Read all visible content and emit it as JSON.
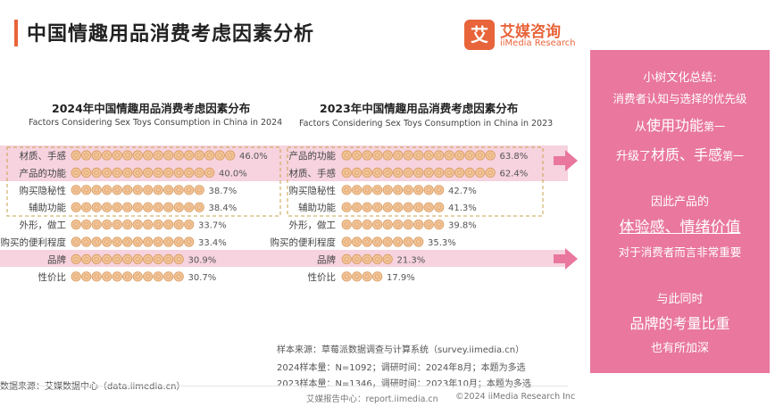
{
  "header": {
    "title": "中国情趣用品消费考虑因素分析",
    "logo_cn": "艾媒咨询",
    "logo_en": "iiMedia Research",
    "logo_mark": "艾"
  },
  "chart_data": [
    {
      "type": "bar",
      "title": "2024年中国情趣用品消费考虑因素分布",
      "subtitle": "Factors Considering Sex Toys Consumption in China in 2024",
      "categories": [
        "材质、手感",
        "产品的功能",
        "购买隐秘性",
        "辅助功能",
        "外形，做工",
        "购买的便利程度",
        "品牌",
        "性价比"
      ],
      "values": [
        46.0,
        40.0,
        38.7,
        38.4,
        33.7,
        33.4,
        30.9,
        30.7
      ],
      "value_labels": [
        "46.0%",
        "40.0%",
        "38.7%",
        "38.4%",
        "33.7%",
        "33.4%",
        "30.9%",
        "30.7%"
      ],
      "unit": "%"
    },
    {
      "type": "bar",
      "title": "2023年中国情趣用品消费考虑因素分布",
      "subtitle": "Factors Considering Sex Toys Consumption in China in 2023",
      "categories": [
        "产品的功能",
        "材质、手感",
        "购买隐秘性",
        "辅助功能",
        "外形，做工",
        "购买的便利程度",
        "品牌",
        "性价比"
      ],
      "values": [
        63.8,
        62.4,
        42.7,
        41.3,
        39.8,
        35.3,
        21.3,
        17.9
      ],
      "value_labels": [
        "63.8%",
        "62.4%",
        "42.7%",
        "41.3%",
        "39.8%",
        "35.3%",
        "21.3%",
        "17.9%"
      ],
      "unit": "%"
    }
  ],
  "colors": {
    "accent": "#e8643a",
    "panel": "#e9779e",
    "highlight": "#f6d3de",
    "bubble_fill": "#f2c59a",
    "bubble_stroke": "#d99a5e",
    "dash": "#c9a24a"
  },
  "sources": {
    "sample_source": "样本来源：草莓派数据调查与计算系统（survey.iimedia.cn）",
    "sample_2024": "2024样本量：N=1092；调研时间：2024年8月；本题为多选",
    "sample_2023": "2023样本量：N=1346，调研时间：2023年10月；本题为多选",
    "data_source": "数据来源：艾媒数据中心（data.iimedia.cn）"
  },
  "footer": {
    "left": "艾媒报告中心：report.iimedia.cn",
    "right": "©2024  iiMedia Research Inc"
  },
  "side_panel": {
    "l1": "小树文化总结:",
    "l2": "消费者认知与选择的优先级",
    "l3a": "从",
    "l3b": "使用功能",
    "l3c": "第一",
    "l4a": "升级了",
    "l4b": "材质、手感",
    "l4c": "第一",
    "l5": "因此产品的",
    "l6": "体验感、情绪价值",
    "l7": "对于消费者而言非常重要",
    "l8": "与此同时",
    "l9": "品牌的考量比重",
    "l10": "也有所加深"
  }
}
